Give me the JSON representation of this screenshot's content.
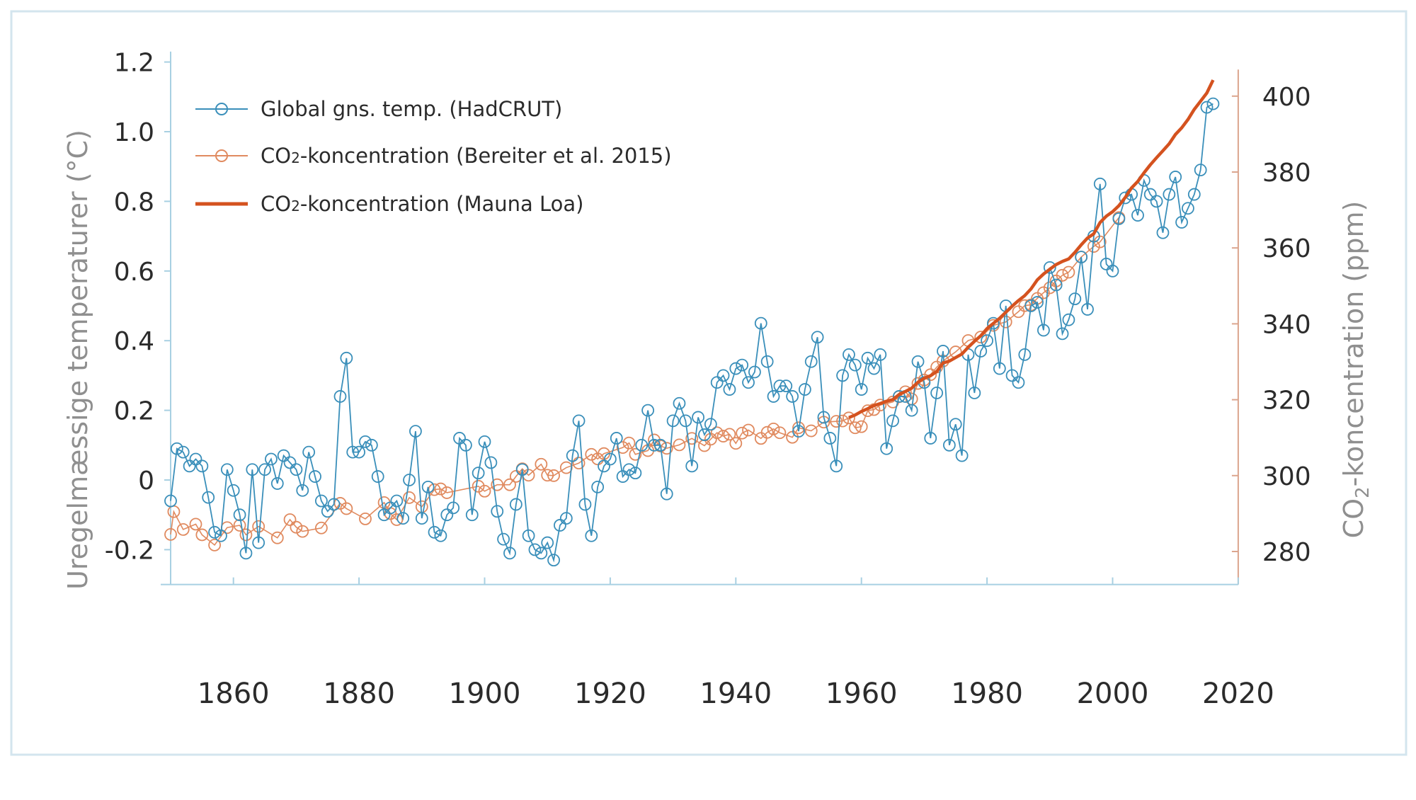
{
  "chart_data": {
    "type": "line",
    "xlim": [
      1850,
      2020
    ],
    "x_ticks": [
      "1860",
      "1880",
      "1900",
      "1920",
      "1940",
      "1960",
      "1980",
      "2000",
      "2020"
    ],
    "y_left": {
      "label": "Uregelmæssige temperaturer (°C)",
      "lim": [
        -0.3,
        1.22
      ],
      "ticks": [
        "1.2",
        "1.0",
        "0.8",
        "0.6",
        "0.4",
        "0.2",
        "0",
        "-0.2"
      ],
      "tick_values": [
        1.2,
        1.0,
        0.8,
        0.6,
        0.4,
        0.2,
        0,
        -0.2
      ]
    },
    "y_right": {
      "label_main": "CO",
      "label_sub": "2",
      "label_rest": "-koncentration (ppm)",
      "lim": [
        271.6,
        407
      ],
      "ticks": [
        "400",
        "380",
        "360",
        "340",
        "320",
        "300",
        "280"
      ],
      "tick_values": [
        400,
        380,
        360,
        340,
        320,
        300,
        280
      ]
    },
    "legend": {
      "placement": "top-left",
      "items": [
        {
          "pre": "Global gns. temp. (HadCRUT)",
          "sub": "",
          "post": ""
        },
        {
          "pre": "CO",
          "sub": "2",
          "post": "-koncentration (Bereiter et al. 2015)"
        },
        {
          "pre": "CO",
          "sub": "2",
          "post": "-koncentration (Mauna Loa)"
        }
      ]
    },
    "colors": {
      "temp": "#3a8fba",
      "bereiter": "#e08a5f",
      "mauna_loa": "#d4521f",
      "left_axis": "#a8d0e2",
      "right_axis": "#dba58e",
      "frame": "#d3e5ee"
    },
    "series": [
      {
        "name": "Global gns. temp. (HadCRUT)",
        "axis": "left",
        "marker": "circle",
        "x_start": 1850,
        "values": [
          -0.06,
          0.09,
          0.08,
          0.04,
          0.06,
          0.04,
          -0.05,
          -0.15,
          -0.16,
          0.03,
          -0.03,
          -0.1,
          -0.21,
          0.03,
          -0.18,
          0.03,
          0.06,
          -0.01,
          0.07,
          0.05,
          0.03,
          -0.03,
          0.08,
          0.01,
          -0.06,
          -0.09,
          -0.07,
          0.24,
          0.35,
          0.08,
          0.08,
          0.11,
          0.1,
          0.01,
          -0.1,
          -0.08,
          -0.06,
          -0.11,
          0.0,
          0.14,
          -0.11,
          -0.02,
          -0.15,
          -0.16,
          -0.1,
          -0.08,
          0.12,
          0.1,
          -0.1,
          0.02,
          0.11,
          0.05,
          -0.09,
          -0.17,
          -0.21,
          -0.07,
          0.03,
          -0.16,
          -0.2,
          -0.21,
          -0.18,
          -0.23,
          -0.13,
          -0.11,
          0.07,
          0.17,
          -0.07,
          -0.16,
          -0.02,
          0.04,
          0.06,
          0.12,
          0.01,
          0.03,
          0.02,
          0.1,
          0.2,
          0.1,
          0.1,
          -0.04,
          0.17,
          0.22,
          0.17,
          0.04,
          0.18,
          0.13,
          0.16,
          0.28,
          0.3,
          0.26,
          0.32,
          0.33,
          0.28,
          0.31,
          0.45,
          0.34,
          0.24,
          0.27,
          0.27,
          0.24,
          0.14,
          0.26,
          0.34,
          0.41,
          0.18,
          0.12,
          0.04,
          0.3,
          0.36,
          0.33,
          0.26,
          0.35,
          0.32,
          0.36,
          0.09,
          0.17,
          0.24,
          0.24,
          0.2,
          0.34,
          0.28,
          0.12,
          0.25,
          0.37,
          0.1,
          0.16,
          0.07,
          0.36,
          0.25,
          0.37,
          0.4,
          0.45,
          0.32,
          0.5,
          0.3,
          0.28,
          0.36,
          0.5,
          0.51,
          0.43,
          0.61,
          0.56,
          0.42,
          0.46,
          0.52,
          0.64,
          0.49,
          0.7,
          0.85,
          0.62,
          0.6,
          0.75,
          0.81,
          0.82,
          0.76,
          0.86,
          0.82,
          0.8,
          0.71,
          0.82,
          0.87,
          0.74,
          0.78,
          0.82,
          0.89,
          1.07,
          1.08
        ]
      },
      {
        "name": "CO2-koncentration (Bereiter et al. 2015)",
        "axis": "right",
        "marker": "circle",
        "points": [
          [
            1850,
            284.5
          ],
          [
            1850.5,
            290.5
          ],
          [
            1852,
            285.8
          ],
          [
            1854,
            287.2
          ],
          [
            1855,
            284.4
          ],
          [
            1857,
            281.7
          ],
          [
            1859,
            286.3
          ],
          [
            1861,
            286.9
          ],
          [
            1862,
            284.4
          ],
          [
            1864,
            286.6
          ],
          [
            1867,
            283.6
          ],
          [
            1869,
            288.4
          ],
          [
            1870,
            286.4
          ],
          [
            1871,
            285.3
          ],
          [
            1874,
            286.2
          ],
          [
            1877,
            292.7
          ],
          [
            1878,
            291.3
          ],
          [
            1881,
            288.6
          ],
          [
            1884,
            292.9
          ],
          [
            1885,
            290.0
          ],
          [
            1886,
            288.4
          ],
          [
            1888,
            294.2
          ],
          [
            1890,
            291.8
          ],
          [
            1892,
            296.3
          ],
          [
            1893,
            296.5
          ],
          [
            1894,
            295.5
          ],
          [
            1899,
            297.2
          ],
          [
            1900,
            295.9
          ],
          [
            1902,
            297.6
          ],
          [
            1904,
            297.6
          ],
          [
            1905,
            299.8
          ],
          [
            1906,
            301.8
          ],
          [
            1907,
            300.1
          ],
          [
            1909,
            303.0
          ],
          [
            1910,
            300.1
          ],
          [
            1911,
            300.0
          ],
          [
            1913,
            302.1
          ],
          [
            1915,
            303.3
          ],
          [
            1917,
            305.6
          ],
          [
            1918,
            304.4
          ],
          [
            1919,
            305.8
          ],
          [
            1922,
            307.4
          ],
          [
            1923,
            308.6
          ],
          [
            1924,
            305.6
          ],
          [
            1926,
            306.6
          ],
          [
            1927,
            309.4
          ],
          [
            1928,
            307.8
          ],
          [
            1929,
            307.2
          ],
          [
            1931,
            308.1
          ],
          [
            1933,
            309.8
          ],
          [
            1935,
            307.9
          ],
          [
            1936,
            309.6
          ],
          [
            1937,
            311.3
          ],
          [
            1938,
            310.4
          ],
          [
            1939,
            310.9
          ],
          [
            1940,
            308.5
          ],
          [
            1941,
            311.2
          ],
          [
            1942,
            312.0
          ],
          [
            1944,
            309.8
          ],
          [
            1945,
            311.4
          ],
          [
            1946,
            312.3
          ],
          [
            1947,
            311.3
          ],
          [
            1949,
            310.1
          ],
          [
            1950,
            312.6
          ],
          [
            1952,
            311.8
          ],
          [
            1954,
            314.1
          ],
          [
            1956,
            314.3
          ],
          [
            1957,
            314.4
          ],
          [
            1958,
            315.2
          ],
          [
            1959,
            312.6
          ],
          [
            1960,
            312.9
          ],
          [
            1961,
            317.1
          ],
          [
            1962,
            317.4
          ],
          [
            1963,
            318.6
          ],
          [
            1965,
            319.4
          ],
          [
            1966,
            320.8
          ],
          [
            1967,
            322.1
          ],
          [
            1968,
            320.2
          ],
          [
            1969,
            324.3
          ],
          [
            1970,
            325.2
          ],
          [
            1971,
            326.6
          ],
          [
            1972,
            328.6
          ],
          [
            1973,
            330.2
          ],
          [
            1975,
            332.6
          ],
          [
            1977,
            335.6
          ],
          [
            1979,
            336.5
          ],
          [
            1981,
            339.6
          ],
          [
            1983,
            340.5
          ],
          [
            1985,
            343.2
          ],
          [
            1986,
            344.8
          ],
          [
            1987,
            345.0
          ],
          [
            1988,
            346.7
          ],
          [
            1989,
            348.2
          ],
          [
            1990,
            349.5
          ],
          [
            1991,
            351.3
          ],
          [
            1992,
            352.8
          ],
          [
            1993,
            353.6
          ],
          [
            1995,
            357.6
          ],
          [
            1997,
            360.4
          ],
          [
            1998,
            361.6
          ],
          [
            2001,
            368.0
          ]
        ]
      },
      {
        "name": "CO2-koncentration (Mauna Loa)",
        "axis": "right",
        "marker": "none",
        "x_start": 1958,
        "values": [
          315.3,
          315.97,
          316.91,
          317.64,
          318.45,
          318.99,
          319.62,
          320.04,
          321.38,
          322.16,
          323.04,
          324.62,
          325.68,
          326.32,
          327.45,
          329.68,
          330.18,
          331.11,
          332.04,
          333.83,
          335.4,
          336.84,
          338.75,
          340.11,
          341.45,
          343.05,
          344.65,
          346.12,
          347.42,
          349.19,
          351.57,
          353.12,
          354.39,
          355.61,
          356.45,
          357.1,
          358.83,
          360.82,
          362.61,
          363.73,
          366.7,
          368.38,
          369.55,
          371.14,
          373.28,
          375.8,
          377.52,
          379.8,
          381.9,
          383.79,
          385.6,
          387.43,
          389.9,
          391.65,
          393.85,
          396.52,
          398.65,
          400.83,
          404.24
        ]
      }
    ]
  }
}
